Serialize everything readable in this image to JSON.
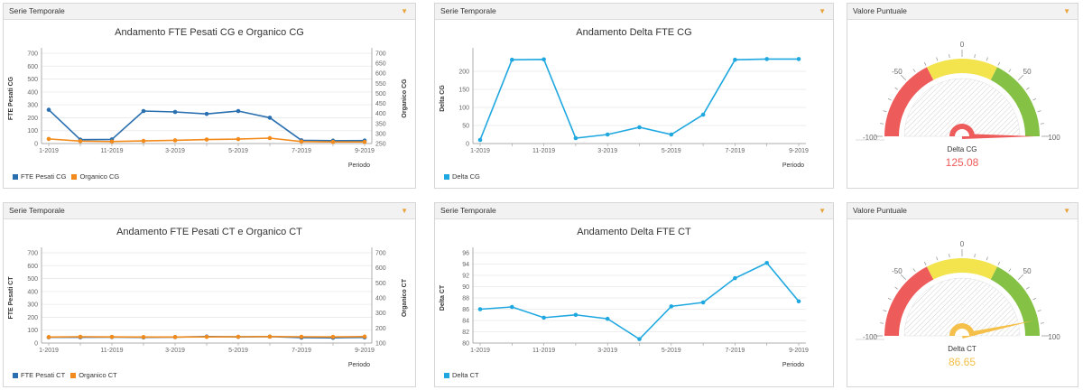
{
  "panels": {
    "p1": {
      "header": "Serie Temporale"
    },
    "p2": {
      "header": "Serie Temporale"
    },
    "p3": {
      "header": "Valore Puntuale"
    },
    "p4": {
      "header": "Serie Temporale"
    },
    "p5": {
      "header": "Serie Temporale"
    },
    "p6": {
      "header": "Valore Puntuale"
    }
  },
  "colors": {
    "blue": "#2a6fb0",
    "orange": "#f28a1c",
    "cyan": "#1fa8e0",
    "red": "#ee5b5b",
    "yellow": "#f3e34d",
    "green": "#84c144"
  },
  "chart_data": [
    {
      "id": "c1",
      "type": "line",
      "title": "Andamento FTE Pesati CG e Organico CG",
      "xlabel": "Periodo",
      "ylabel": "FTE Pesati CG",
      "y2label": "Organico CG",
      "categories": [
        "1-2019",
        "",
        "11-2019",
        "",
        "3-2019",
        "",
        "5-2019",
        "",
        "7-2019",
        "",
        "9-2019"
      ],
      "ylim": [
        0,
        700
      ],
      "yticks": [
        0,
        100,
        200,
        300,
        400,
        500,
        600,
        700
      ],
      "y2lim": [
        250,
        700
      ],
      "y2ticks": [
        250,
        300,
        350,
        400,
        450,
        500,
        550,
        600,
        650,
        700
      ],
      "series": [
        {
          "name": "FTE Pesati CG",
          "color": "#2a6fb0",
          "axis": "left",
          "values": [
            262,
            30,
            32,
            252,
            245,
            230,
            252,
            200,
            25,
            22,
            23
          ]
        },
        {
          "name": "Organico CG",
          "color": "#f28a1c",
          "axis": "right",
          "values": [
            273,
            262,
            260,
            263,
            266,
            270,
            272,
            277,
            260,
            258,
            258
          ]
        }
      ]
    },
    {
      "id": "c2",
      "type": "line",
      "title": "Andamento Delta FTE CG",
      "xlabel": "Periodo",
      "ylabel": "Delta CG",
      "categories": [
        "1-2019",
        "",
        "11-2019",
        "",
        "3-2019",
        "",
        "5-2019",
        "",
        "7-2019",
        "",
        "9-2019"
      ],
      "ylim": [
        0,
        250
      ],
      "yticks": [
        0,
        50,
        100,
        150,
        200
      ],
      "series": [
        {
          "name": "Delta CG",
          "color": "#1fa8e0",
          "values": [
            10,
            232,
            233,
            15,
            25,
            45,
            25,
            80,
            232,
            234,
            234
          ]
        }
      ]
    },
    {
      "id": "c4",
      "type": "line",
      "title": "Andamento FTE Pesati CT e Organico CT",
      "xlabel": "Periodo",
      "ylabel": "FTE Pesati CT",
      "y2label": "Organico CT",
      "categories": [
        "1-2019",
        "",
        "11-2019",
        "",
        "3-2019",
        "",
        "5-2019",
        "",
        "7-2019",
        "",
        "9-2019"
      ],
      "ylim": [
        0,
        700
      ],
      "yticks": [
        0,
        100,
        200,
        300,
        400,
        500,
        600,
        700
      ],
      "y2lim": [
        100,
        700
      ],
      "y2ticks": [
        100,
        200,
        300,
        400,
        500,
        600,
        700
      ],
      "series": [
        {
          "name": "FTE Pesati CT",
          "color": "#2a6fb0",
          "axis": "left",
          "values": [
            45,
            45,
            46,
            44,
            46,
            50,
            48,
            50,
            42,
            41,
            44
          ]
        },
        {
          "name": "Organico CT",
          "color": "#f28a1c",
          "axis": "right",
          "values": [
            140,
            142,
            141,
            140,
            140,
            141,
            142,
            143,
            142,
            141,
            143
          ]
        }
      ]
    },
    {
      "id": "c5",
      "type": "line",
      "title": "Andamento Delta FTE CT",
      "xlabel": "Periodo",
      "ylabel": "Delta CT",
      "categories": [
        "1-2019",
        "",
        "11-2019",
        "",
        "3-2019",
        "",
        "5-2019",
        "",
        "7-2019",
        "",
        "9-2019"
      ],
      "ylim": [
        80,
        96
      ],
      "yticks": [
        80,
        82,
        84,
        86,
        88,
        90,
        92,
        94,
        96
      ],
      "series": [
        {
          "name": "Delta CT",
          "color": "#1fa8e0",
          "values": [
            86,
            86.4,
            84.5,
            85,
            84.3,
            80.7,
            86.5,
            87.2,
            91.5,
            94.2,
            87.4
          ]
        }
      ]
    }
  ],
  "gauges": [
    {
      "id": "g1",
      "label": "Delta CG",
      "value_text": "125.08",
      "value": 125.08,
      "value_color": "#ee5b5b",
      "min": -100,
      "max": 100,
      "ticks": [
        "-100",
        "-50",
        "0",
        "50",
        "100"
      ]
    },
    {
      "id": "g2",
      "label": "Delta CT",
      "value_text": "86.65",
      "value": 86.65,
      "value_color": "#f5c04a",
      "min": -100,
      "max": 100,
      "ticks": [
        "-100",
        "-50",
        "0",
        "50",
        "100"
      ]
    }
  ]
}
